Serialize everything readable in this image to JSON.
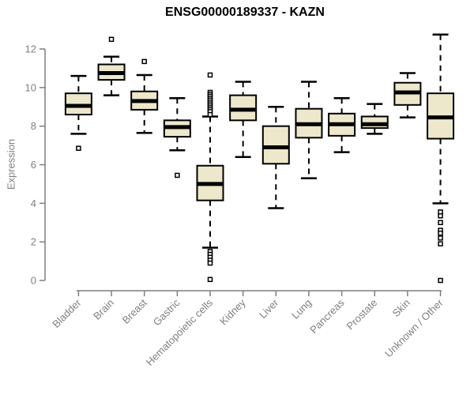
{
  "chart_data": {
    "type": "boxplot",
    "title": "ENSG00000189337 - KAZN",
    "ylabel": "Expression",
    "xlabel": "",
    "ylim": [
      0,
      12.8
    ],
    "yticks": [
      0,
      2,
      4,
      6,
      8,
      10,
      12
    ],
    "grid": false,
    "legend": "none",
    "style": {
      "box_fill": "#EDE7CB",
      "box_stroke": "#000000",
      "median_color": "#000000",
      "whisker_color": "#000000",
      "outlier_fill": "#ffffff",
      "outlier_stroke": "#000000",
      "axis_color": "#7f7f7f",
      "tick_label_color": "#7f7f7f",
      "title_color": "#000000",
      "background": "#ffffff"
    },
    "categories": [
      "Bladder",
      "Brain",
      "Breast",
      "Gastric",
      "Hematopoietic cells",
      "Kidney",
      "Liver",
      "Lung",
      "Pancreas",
      "Prostate",
      "Skin",
      "Unknown / Other"
    ],
    "series": [
      {
        "name": "Bladder",
        "whisker_low": 7.6,
        "q1": 8.6,
        "median": 9.05,
        "q3": 9.7,
        "whisker_high": 10.6,
        "outliers": [
          6.85
        ]
      },
      {
        "name": "Brain",
        "whisker_low": 9.6,
        "q1": 10.4,
        "median": 10.75,
        "q3": 11.2,
        "whisker_high": 11.6,
        "outliers": [
          12.5
        ]
      },
      {
        "name": "Breast",
        "whisker_low": 7.65,
        "q1": 8.85,
        "median": 9.3,
        "q3": 9.8,
        "whisker_high": 10.65,
        "outliers": [
          11.35
        ]
      },
      {
        "name": "Gastric",
        "whisker_low": 6.75,
        "q1": 7.45,
        "median": 7.95,
        "q3": 8.3,
        "whisker_high": 9.45,
        "outliers": [
          5.45
        ]
      },
      {
        "name": "Hematopoietic cells",
        "whisker_low": 1.7,
        "q1": 4.15,
        "median": 5.0,
        "q3": 5.95,
        "whisker_high": 8.5,
        "outliers": [
          10.65,
          9.75,
          9.65,
          9.55,
          9.45,
          9.35,
          9.25,
          9.15,
          9.05,
          8.95,
          8.85,
          8.75,
          8.6,
          1.5,
          1.35,
          1.2,
          1.05,
          0.9,
          0.05
        ]
      },
      {
        "name": "Kidney",
        "whisker_low": 6.4,
        "q1": 8.3,
        "median": 8.85,
        "q3": 9.6,
        "whisker_high": 10.3,
        "outliers": []
      },
      {
        "name": "Liver",
        "whisker_low": 3.75,
        "q1": 6.05,
        "median": 6.9,
        "q3": 8.0,
        "whisker_high": 9.0,
        "outliers": []
      },
      {
        "name": "Lung",
        "whisker_low": 5.3,
        "q1": 7.4,
        "median": 8.1,
        "q3": 8.9,
        "whisker_high": 10.3,
        "outliers": []
      },
      {
        "name": "Pancreas",
        "whisker_low": 6.65,
        "q1": 7.5,
        "median": 8.1,
        "q3": 8.65,
        "whisker_high": 9.45,
        "outliers": []
      },
      {
        "name": "Prostate",
        "whisker_low": 7.6,
        "q1": 7.9,
        "median": 8.1,
        "q3": 8.5,
        "whisker_high": 9.15,
        "outliers": []
      },
      {
        "name": "Skin",
        "whisker_low": 8.45,
        "q1": 9.1,
        "median": 9.75,
        "q3": 10.25,
        "whisker_high": 10.75,
        "outliers": []
      },
      {
        "name": "Unknown / Other",
        "whisker_low": 4.0,
        "q1": 7.35,
        "median": 8.45,
        "q3": 9.7,
        "whisker_high": 12.75,
        "outliers": [
          3.55,
          3.35,
          3.0,
          2.6,
          2.45,
          2.2,
          1.9,
          0.0
        ]
      }
    ]
  }
}
